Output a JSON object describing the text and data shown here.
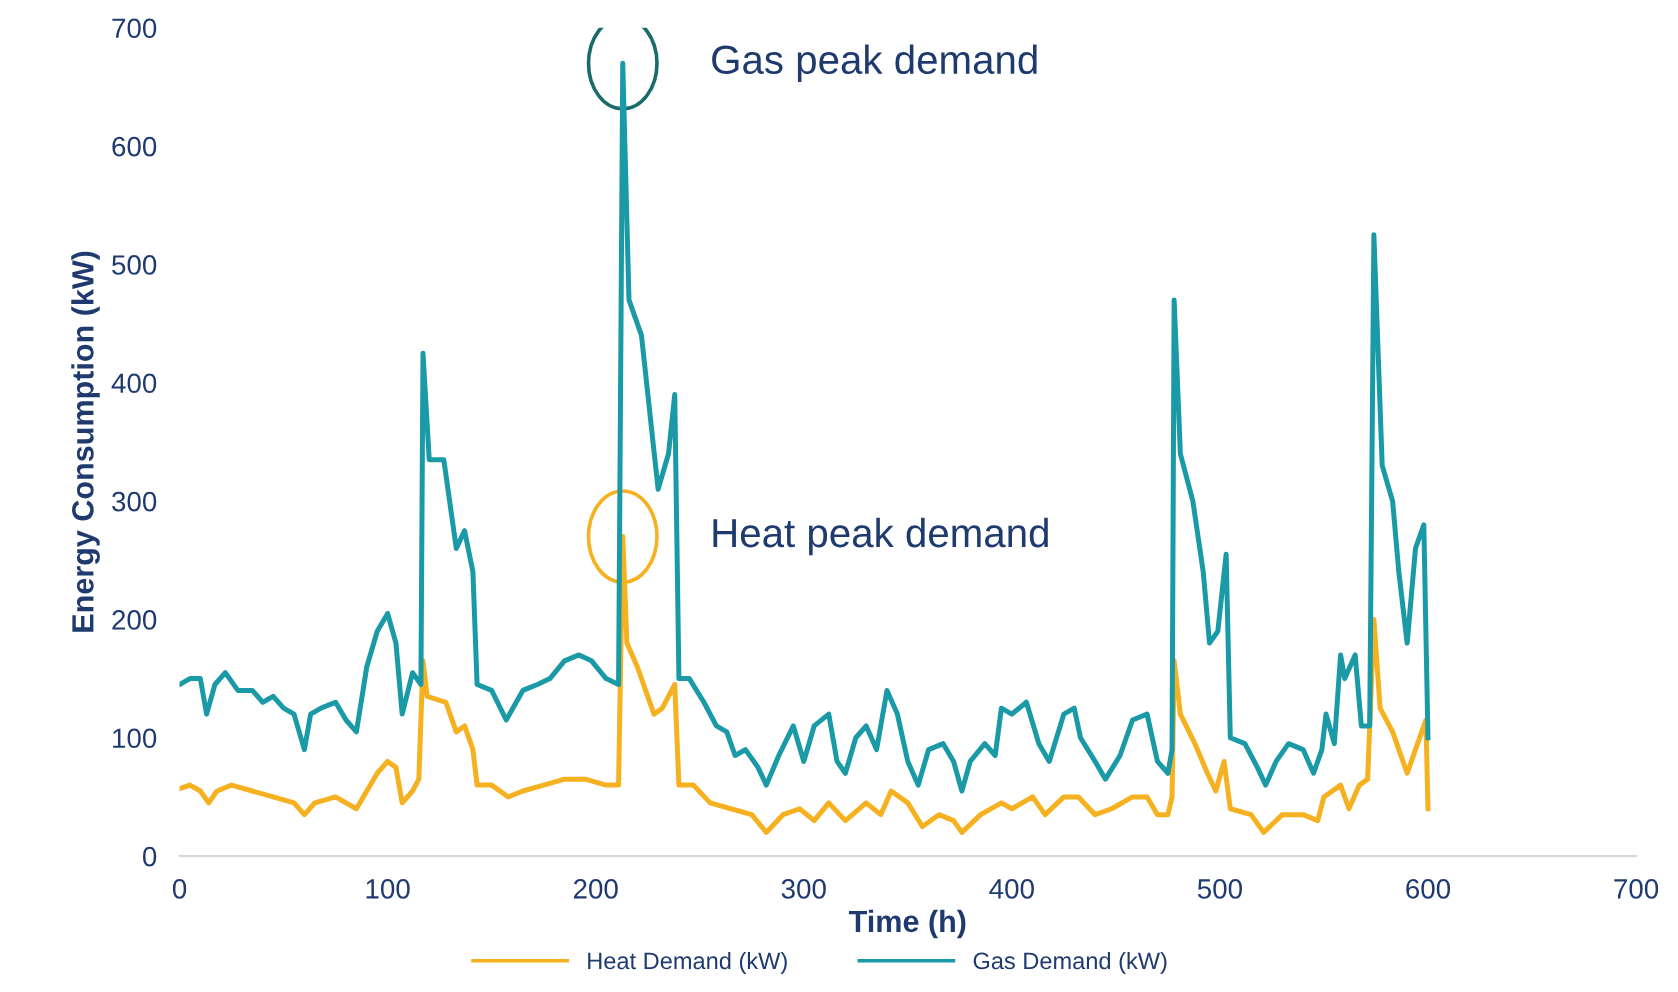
{
  "chart_data": {
    "type": "line",
    "xlabel": "Time (h)",
    "ylabel": "Energy Consumption (kW)",
    "xlim": [
      0,
      700
    ],
    "ylim": [
      0,
      700
    ],
    "xticks": [
      0,
      100,
      200,
      300,
      400,
      500,
      600,
      700
    ],
    "yticks": [
      0,
      100,
      200,
      300,
      400,
      500,
      600,
      700
    ],
    "grid": false,
    "legend": "bottom",
    "marker": "none",
    "line_style": "solid",
    "series": [
      {
        "name": "Heat Demand (kW)",
        "color": "#f5b120",
        "x": [
          0,
          5,
          10,
          14,
          18,
          25,
          35,
          45,
          55,
          60,
          65,
          75,
          85,
          90,
          95,
          100,
          104,
          107,
          112,
          115,
          117,
          119,
          128,
          133,
          137,
          141,
          143,
          150,
          158,
          165,
          175,
          185,
          195,
          205,
          211,
          213,
          215,
          220,
          228,
          232,
          238,
          240,
          247,
          255,
          265,
          275,
          282,
          290,
          298,
          305,
          312,
          320,
          330,
          337,
          342,
          350,
          357,
          365,
          372,
          376,
          385,
          395,
          400,
          410,
          416,
          425,
          432,
          440,
          448,
          458,
          465,
          470,
          475,
          477,
          478,
          481,
          488,
          494,
          498,
          502,
          505,
          515,
          521,
          530,
          540,
          547,
          550,
          558,
          562,
          567,
          571,
          574,
          577,
          583,
          590,
          596,
          599,
          600
        ],
        "values": [
          57,
          60,
          55,
          45,
          55,
          60,
          55,
          50,
          45,
          35,
          45,
          50,
          40,
          55,
          70,
          80,
          75,
          45,
          55,
          65,
          165,
          135,
          130,
          105,
          110,
          90,
          60,
          60,
          50,
          55,
          60,
          65,
          65,
          60,
          60,
          270,
          180,
          160,
          120,
          125,
          145,
          60,
          60,
          45,
          40,
          35,
          20,
          35,
          40,
          30,
          45,
          30,
          45,
          35,
          55,
          45,
          25,
          35,
          30,
          20,
          35,
          45,
          40,
          50,
          35,
          50,
          50,
          35,
          40,
          50,
          50,
          35,
          35,
          50,
          165,
          120,
          95,
          70,
          55,
          80,
          40,
          35,
          20,
          35,
          35,
          30,
          50,
          60,
          40,
          60,
          65,
          200,
          125,
          105,
          70,
          100,
          115,
          40
        ]
      },
      {
        "name": "Gas Demand (kW)",
        "color": "#1a9aa6",
        "x": [
          0,
          5,
          10,
          13,
          17,
          22,
          28,
          35,
          40,
          45,
          50,
          55,
          60,
          63,
          68,
          75,
          80,
          85,
          90,
          95,
          100,
          104,
          107,
          112,
          116,
          117,
          120,
          127,
          133,
          137,
          141,
          143,
          150,
          157,
          165,
          172,
          178,
          185,
          192,
          198,
          205,
          211,
          213,
          216,
          222,
          230,
          235,
          238,
          240,
          245,
          252,
          258,
          263,
          267,
          272,
          278,
          282,
          288,
          295,
          300,
          305,
          312,
          316,
          320,
          325,
          330,
          335,
          340,
          345,
          350,
          355,
          360,
          367,
          372,
          376,
          380,
          387,
          392,
          395,
          400,
          407,
          413,
          418,
          425,
          430,
          433,
          440,
          445,
          452,
          458,
          465,
          470,
          475,
          477,
          478,
          481,
          487,
          492,
          495,
          499,
          503,
          505,
          512,
          518,
          522,
          527,
          533,
          540,
          545,
          549,
          551,
          555,
          558,
          560,
          565,
          568,
          572,
          574,
          578,
          583,
          586,
          590,
          594,
          598,
          600
        ],
        "values": [
          145,
          150,
          150,
          120,
          145,
          155,
          140,
          140,
          130,
          135,
          125,
          120,
          90,
          120,
          125,
          130,
          115,
          105,
          160,
          190,
          205,
          180,
          120,
          155,
          145,
          425,
          335,
          335,
          260,
          275,
          240,
          145,
          140,
          115,
          140,
          145,
          150,
          165,
          170,
          165,
          150,
          145,
          670,
          470,
          440,
          310,
          340,
          390,
          150,
          150,
          130,
          110,
          105,
          85,
          90,
          75,
          60,
          85,
          110,
          80,
          110,
          120,
          80,
          70,
          100,
          110,
          90,
          140,
          120,
          80,
          60,
          90,
          95,
          80,
          55,
          80,
          95,
          85,
          125,
          120,
          130,
          95,
          80,
          120,
          125,
          100,
          80,
          65,
          85,
          115,
          120,
          80,
          70,
          90,
          470,
          340,
          300,
          240,
          180,
          190,
          255,
          100,
          95,
          75,
          60,
          80,
          95,
          90,
          70,
          90,
          120,
          95,
          170,
          150,
          170,
          110,
          110,
          525,
          330,
          300,
          240,
          180,
          260,
          280,
          100
        ]
      }
    ],
    "annotations": [
      {
        "text": "Gas peak demand",
        "x": 213,
        "y": 670
      },
      {
        "text": "Heat peak demand",
        "x": 213,
        "y": 270
      }
    ]
  }
}
